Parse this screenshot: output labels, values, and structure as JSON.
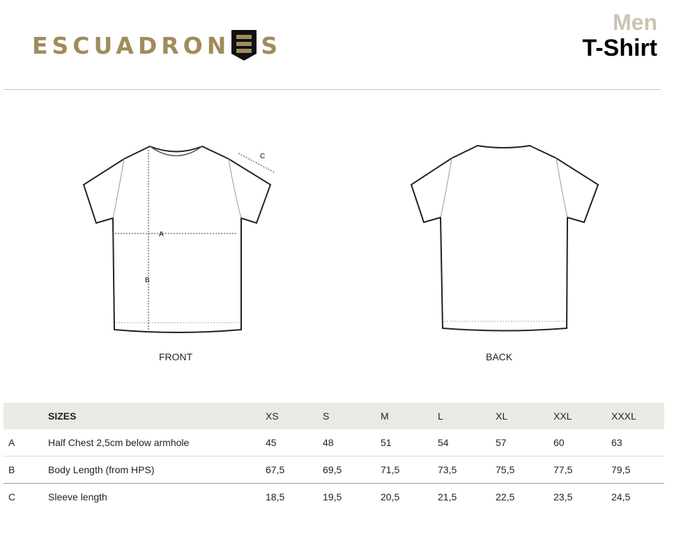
{
  "brand": {
    "logo_text": "ESCUADRONES",
    "color": "#a08c5b"
  },
  "title": {
    "category": "Men",
    "product": "T-Shirt"
  },
  "diagram": {
    "front_label": "FRONT",
    "back_label": "BACK",
    "marker_a": "A",
    "marker_b": "B",
    "marker_c": "C"
  },
  "table": {
    "header": {
      "letter": "",
      "label": "SIZES",
      "sizes": [
        "XS",
        "S",
        "M",
        "L",
        "XL",
        "XXL",
        "XXXL"
      ]
    },
    "rows": [
      {
        "letter": "A",
        "label": "Half Chest 2,5cm below armhole",
        "values": [
          "45",
          "48",
          "51",
          "54",
          "57",
          "60",
          "63"
        ]
      },
      {
        "letter": "B",
        "label": "Body Length (from HPS)",
        "values": [
          "67,5",
          "69,5",
          "71,5",
          "73,5",
          "75,5",
          "77,5",
          "79,5"
        ]
      },
      {
        "letter": "C",
        "label": "Sleeve length",
        "values": [
          "18,5",
          "19,5",
          "20,5",
          "21,5",
          "22,5",
          "23,5",
          "24,5"
        ]
      }
    ]
  }
}
